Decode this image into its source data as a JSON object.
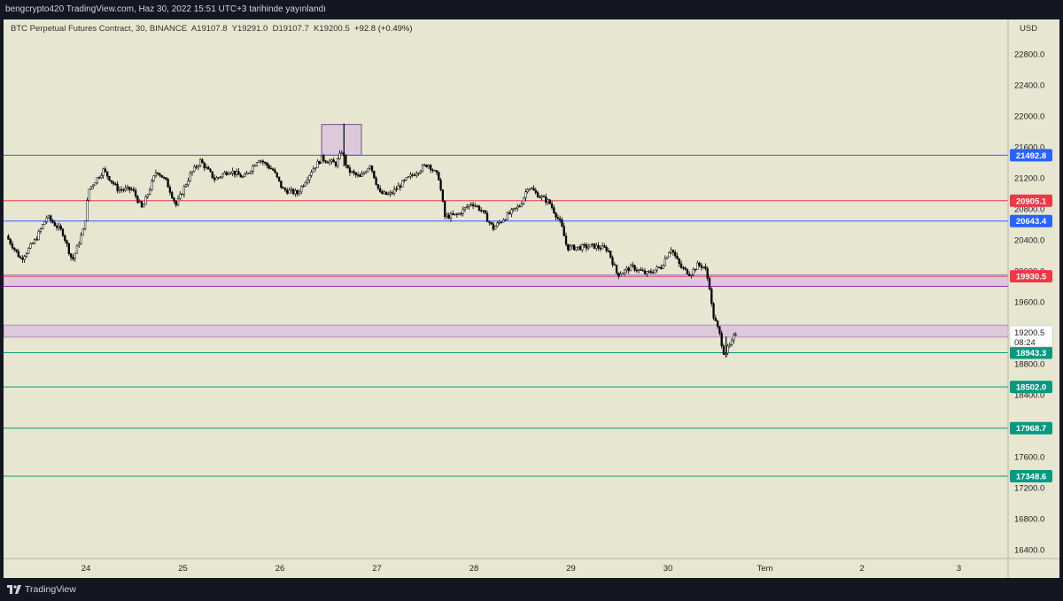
{
  "header": {
    "publish_line": "bengcrypto420 TradingView.com, Haz 30, 2022 15:51 UTC+3 tarihinde yayınlandı"
  },
  "legend": {
    "symbol": "BTC Perpetual Futures Contract, 30, BINANCE",
    "open": "A19107.8",
    "high": "Y19291.0",
    "low": "D19107.7",
    "close": "K19200.5",
    "change": "+92.8 (+0.49%)"
  },
  "footer": {
    "brand": "TradingView"
  },
  "colors": {
    "background": "#e7e6d1",
    "frame": "#131722",
    "blue_line": "#2962ff",
    "red_line": "#f23645",
    "green_line": "#089981",
    "zone_fill": "#d9c3dd",
    "purple_line": "#9c27b0",
    "candle": "#000000"
  },
  "chart_data": {
    "type": "candlestick",
    "currency": "USD",
    "y_range": [
      16200,
      23100
    ],
    "y_ticks": [
      {
        "value": 22800,
        "label": "22800.0"
      },
      {
        "value": 22400,
        "label": "22400.0"
      },
      {
        "value": 22000,
        "label": "22000.0"
      },
      {
        "value": 21600,
        "label": "21600.0"
      },
      {
        "value": 21200,
        "label": "21200.0"
      },
      {
        "value": 20800,
        "label": "20800.0"
      },
      {
        "value": 20400,
        "label": "20400.0"
      },
      {
        "value": 20000,
        "label": "20000.0"
      },
      {
        "value": 19600,
        "label": "19600.0"
      },
      {
        "value": 18800,
        "label": "18800.0"
      },
      {
        "value": 18400,
        "label": "18400.0"
      },
      {
        "value": 17600,
        "label": "17600.0"
      },
      {
        "value": 17200,
        "label": "17200.0"
      },
      {
        "value": 16800,
        "label": "16800.0"
      },
      {
        "value": 16400,
        "label": "16400.0"
      }
    ],
    "x_range_days": [
      23.2,
      3.55
    ],
    "x_ticks": [
      {
        "label": "24",
        "day": 24
      },
      {
        "label": "25",
        "day": 25
      },
      {
        "label": "26",
        "day": 26
      },
      {
        "label": "27",
        "day": 27
      },
      {
        "label": "28",
        "day": 28
      },
      {
        "label": "29",
        "day": 29
      },
      {
        "label": "30",
        "day": 30
      },
      {
        "label": "Tem",
        "day": 31
      },
      {
        "label": "2",
        "day": 32
      },
      {
        "label": "3",
        "day": 33
      }
    ],
    "price_lines": [
      {
        "value": 21492.8,
        "label": "21492.8",
        "color": "blue"
      },
      {
        "value": 20905.1,
        "label": "20905.1",
        "color": "red"
      },
      {
        "value": 20643.4,
        "label": "20643.4",
        "color": "blue"
      },
      {
        "value": 19930.5,
        "label": "19930.5",
        "color": "red"
      },
      {
        "value": 18943.3,
        "label": "18943.3",
        "color": "green"
      },
      {
        "value": 18502.0,
        "label": "18502.0",
        "color": "green"
      },
      {
        "value": 17968.7,
        "label": "17968.7",
        "color": "green"
      },
      {
        "value": 17348.6,
        "label": "17348.6",
        "color": "green"
      }
    ],
    "current_price": {
      "value": 19200.5,
      "label": "19200.5",
      "countdown": "08:24"
    },
    "zones": [
      {
        "from_day": 23.2,
        "to_day": 34.0,
        "low": 19800,
        "high": 19950,
        "kind": "full-width"
      },
      {
        "from_day": 23.2,
        "to_day": 34.0,
        "low": 19145,
        "high": 19300,
        "kind": "full-width"
      },
      {
        "from_day": 26.43,
        "to_day": 26.84,
        "low": 21492.8,
        "high": 21890,
        "kind": "box"
      }
    ],
    "path_anchors": [
      {
        "day": 23.2,
        "price": 20450
      },
      {
        "day": 23.35,
        "price": 20150
      },
      {
        "day": 23.5,
        "price": 20400
      },
      {
        "day": 23.62,
        "price": 20700
      },
      {
        "day": 23.78,
        "price": 20500
      },
      {
        "day": 23.88,
        "price": 20130
      },
      {
        "day": 24.0,
        "price": 20550
      },
      {
        "day": 24.05,
        "price": 21050
      },
      {
        "day": 24.2,
        "price": 21300
      },
      {
        "day": 24.35,
        "price": 21050
      },
      {
        "day": 24.5,
        "price": 21050
      },
      {
        "day": 24.6,
        "price": 20800
      },
      {
        "day": 24.75,
        "price": 21300
      },
      {
        "day": 24.85,
        "price": 21150
      },
      {
        "day": 24.95,
        "price": 20850
      },
      {
        "day": 25.1,
        "price": 21250
      },
      {
        "day": 25.2,
        "price": 21420
      },
      {
        "day": 25.35,
        "price": 21180
      },
      {
        "day": 25.5,
        "price": 21300
      },
      {
        "day": 25.65,
        "price": 21200
      },
      {
        "day": 25.8,
        "price": 21450
      },
      {
        "day": 25.95,
        "price": 21300
      },
      {
        "day": 26.05,
        "price": 21050
      },
      {
        "day": 26.2,
        "price": 21000
      },
      {
        "day": 26.35,
        "price": 21300
      },
      {
        "day": 26.45,
        "price": 21450
      },
      {
        "day": 26.6,
        "price": 21380
      },
      {
        "day": 26.66,
        "price": 21550
      },
      {
        "day": 26.72,
        "price": 21300
      },
      {
        "day": 26.85,
        "price": 21200
      },
      {
        "day": 26.95,
        "price": 21380
      },
      {
        "day": 27.05,
        "price": 21000
      },
      {
        "day": 27.15,
        "price": 20980
      },
      {
        "day": 27.3,
        "price": 21150
      },
      {
        "day": 27.45,
        "price": 21300
      },
      {
        "day": 27.55,
        "price": 21380
      },
      {
        "day": 27.66,
        "price": 21200
      },
      {
        "day": 27.72,
        "price": 20700
      },
      {
        "day": 27.85,
        "price": 20720
      },
      {
        "day": 28.0,
        "price": 20880
      },
      {
        "day": 28.1,
        "price": 20780
      },
      {
        "day": 28.22,
        "price": 20550
      },
      {
        "day": 28.35,
        "price": 20700
      },
      {
        "day": 28.5,
        "price": 20850
      },
      {
        "day": 28.58,
        "price": 21100
      },
      {
        "day": 28.66,
        "price": 21000
      },
      {
        "day": 28.8,
        "price": 20880
      },
      {
        "day": 28.92,
        "price": 20600
      },
      {
        "day": 28.98,
        "price": 20300
      },
      {
        "day": 29.1,
        "price": 20300
      },
      {
        "day": 29.25,
        "price": 20320
      },
      {
        "day": 29.4,
        "price": 20280
      },
      {
        "day": 29.5,
        "price": 19950
      },
      {
        "day": 29.65,
        "price": 20050
      },
      {
        "day": 29.8,
        "price": 19960
      },
      {
        "day": 29.95,
        "price": 20050
      },
      {
        "day": 30.05,
        "price": 20300
      },
      {
        "day": 30.15,
        "price": 20050
      },
      {
        "day": 30.25,
        "price": 19960
      },
      {
        "day": 30.33,
        "price": 20080
      },
      {
        "day": 30.4,
        "price": 20050
      },
      {
        "day": 30.45,
        "price": 19800
      },
      {
        "day": 30.48,
        "price": 19450
      },
      {
        "day": 30.55,
        "price": 19200
      },
      {
        "day": 30.6,
        "price": 18930
      },
      {
        "day": 30.67,
        "price": 19050
      },
      {
        "day": 30.72,
        "price": 19200
      }
    ]
  }
}
